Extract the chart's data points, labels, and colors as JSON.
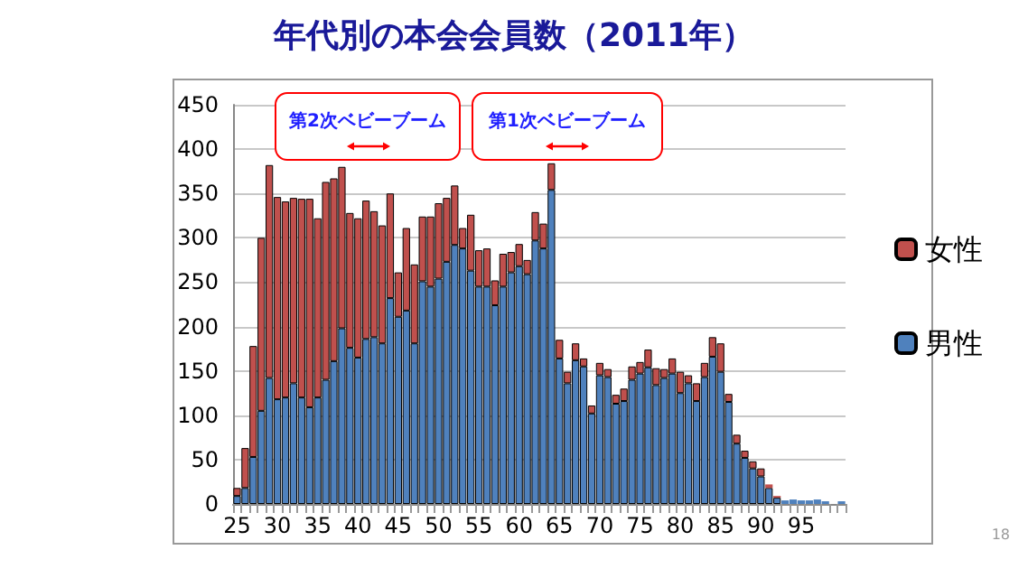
{
  "chart_data": {
    "type": "bar",
    "title": "年代別の本会会員数（2011年）",
    "stacked": true,
    "categories": [
      "25",
      null,
      null,
      null,
      null,
      "30",
      null,
      null,
      null,
      null,
      "35",
      null,
      null,
      null,
      null,
      "40",
      null,
      null,
      null,
      null,
      "45",
      null,
      null,
      null,
      null,
      "50",
      null,
      null,
      null,
      null,
      "55",
      null,
      null,
      null,
      null,
      "60",
      null,
      null,
      null,
      null,
      "65",
      null,
      null,
      null,
      null,
      "70",
      null,
      null,
      null,
      null,
      "75",
      null,
      null,
      null,
      null,
      "80",
      null,
      null,
      null,
      null,
      "85",
      null,
      null,
      null,
      null,
      "90",
      null,
      null,
      null,
      null,
      "95",
      null,
      null,
      null,
      null,
      null
    ],
    "series": [
      {
        "name": "男性",
        "color": "#4f81bd",
        "values": [
          9,
          18,
          53,
          105,
          142,
          118,
          120,
          136,
          120,
          109,
          120,
          140,
          161,
          198,
          176,
          165,
          186,
          188,
          181,
          232,
          211,
          218,
          181,
          251,
          245,
          254,
          273,
          292,
          288,
          263,
          245,
          245,
          224,
          245,
          261,
          268,
          259,
          297,
          288,
          354,
          164,
          136,
          162,
          155,
          102,
          145,
          143,
          113,
          116,
          140,
          147,
          154,
          134,
          142,
          147,
          125,
          136,
          116,
          143,
          166,
          149,
          115,
          68,
          52,
          40,
          31,
          18,
          7,
          4,
          5,
          4,
          4,
          5,
          3,
          0,
          3
        ]
      },
      {
        "name": "女性",
        "color": "#c0504d",
        "values": [
          9,
          45,
          125,
          195,
          240,
          228,
          221,
          209,
          224,
          235,
          202,
          223,
          206,
          182,
          152,
          157,
          156,
          142,
          133,
          118,
          50,
          93,
          89,
          73,
          79,
          85,
          72,
          67,
          23,
          63,
          41,
          43,
          28,
          37,
          23,
          25,
          16,
          32,
          28,
          30,
          21,
          13,
          19,
          9,
          9,
          14,
          9,
          10,
          14,
          15,
          13,
          20,
          19,
          10,
          17,
          24,
          9,
          20,
          16,
          22,
          32,
          9,
          10,
          8,
          8,
          9,
          4,
          2,
          0,
          0,
          0,
          0,
          0,
          0,
          0,
          0
        ]
      }
    ],
    "ylim": [
      0,
      450
    ],
    "yticks": [
      0,
      50,
      100,
      150,
      200,
      250,
      300,
      350,
      400,
      450
    ],
    "grid": "y",
    "legend": "right",
    "annotations": [
      "第2次ベビーブーム",
      "第1次ベビーブーム",
      "18"
    ]
  }
}
